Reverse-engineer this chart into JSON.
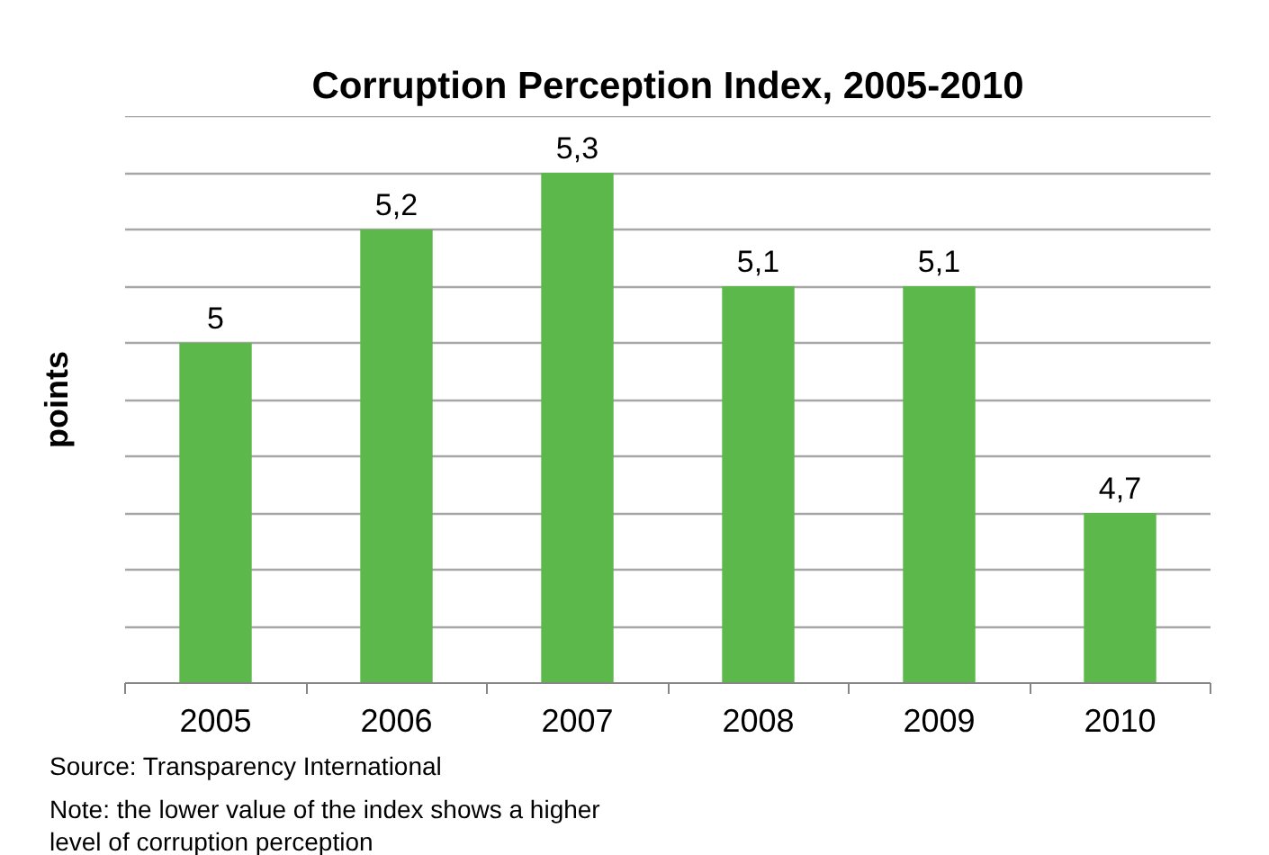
{
  "chart_data": {
    "type": "bar",
    "title": "Corruption Perception Index, 2005-2010",
    "ylabel": "points",
    "categories": [
      "2005",
      "2006",
      "2007",
      "2008",
      "2009",
      "2010"
    ],
    "values": [
      5,
      5.2,
      5.3,
      5.1,
      5.1,
      4.7
    ],
    "color": "#5db84b",
    "value_labels": [
      "5",
      "5,2",
      "5,3",
      "5,1",
      "5,1",
      "4,7"
    ],
    "ylim": [
      4.4,
      5.4
    ],
    "yticks": [
      {
        "value": 4.5,
        "label": null
      },
      {
        "value": 4.6,
        "label": null
      },
      {
        "value": 4.7,
        "label": null
      },
      {
        "value": 4.8,
        "label": null
      },
      {
        "value": 4.9,
        "label": null
      },
      {
        "value": 5.0,
        "label": null
      },
      {
        "value": 5.1,
        "label": null
      },
      {
        "value": 5.2,
        "label": null
      },
      {
        "value": 5.3,
        "label": null
      },
      {
        "value": 5.4,
        "label": null
      }
    ],
    "grid": "y",
    "tick_labels": "x",
    "annotations": [
      "Source: Transparency International",
      "Note: the lower value of the index shows a higher level of corruption perception"
    ]
  }
}
